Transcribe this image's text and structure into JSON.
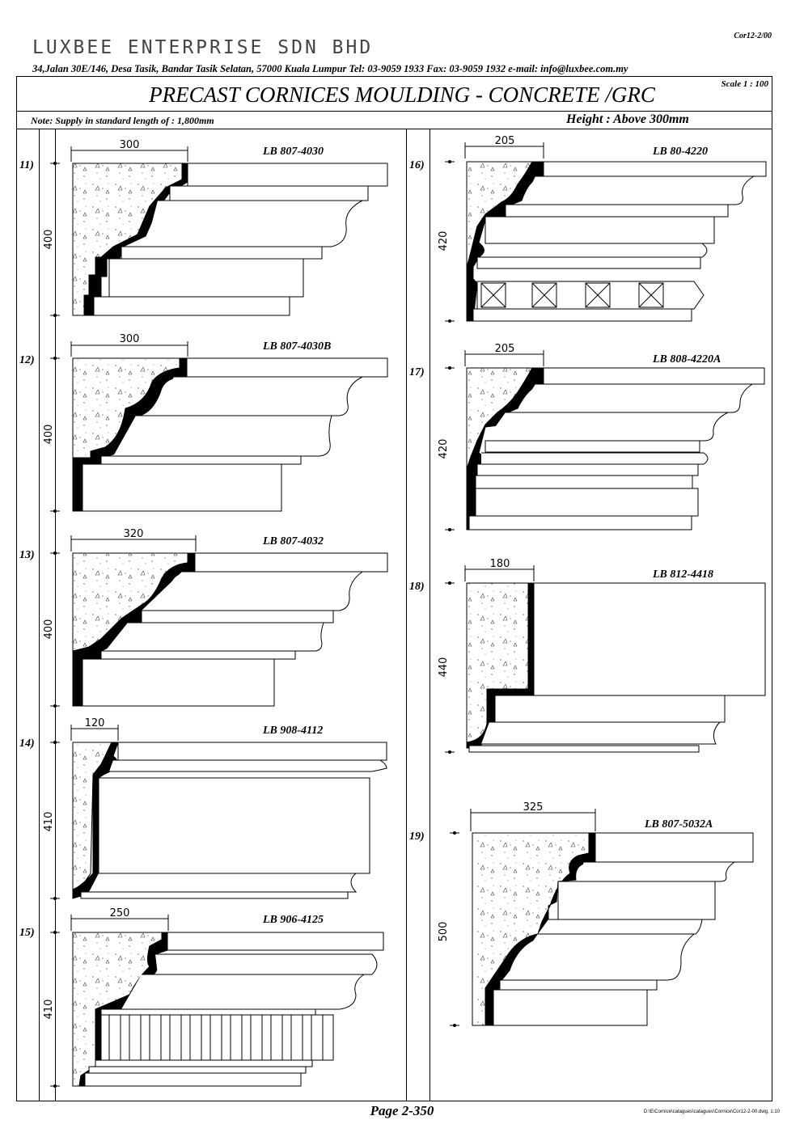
{
  "header": {
    "company": "LUXBEE  ENTERPRISE  SDN  BHD",
    "doc_ref": "Cor12-2/00",
    "address": "34,Jalan 30E/146, Desa Tasik, Bandar Tasik Selatan, 57000 Kuala Lumpur   Tel: 03-9059 1933   Fax: 03-9059 1932   e-mail: info@luxbee.com.my",
    "title": "PRECAST CORNICES MOULDING - CONCRETE /GRC",
    "scale": "Scale 1 : 100",
    "note": "Note: Supply in standard length of : 1,800mm",
    "height": "Height : Above 300mm"
  },
  "items": [
    {
      "num": "11)",
      "code": "LB 807-4030",
      "width": "300",
      "height": "400"
    },
    {
      "num": "12)",
      "code": "LB 807-4030B",
      "width": "300",
      "height": "400"
    },
    {
      "num": "13)",
      "code": "LB 807-4032",
      "width": "320",
      "height": "400"
    },
    {
      "num": "14)",
      "code": "LB 908-4112",
      "width": "120",
      "height": "410"
    },
    {
      "num": "15)",
      "code": "LB 906-4125",
      "width": "250",
      "height": "410"
    },
    {
      "num": "16)",
      "code": "LB 80-4220",
      "width": "205",
      "height": "420"
    },
    {
      "num": "17)",
      "code": "LB 808-4220A",
      "width": "205",
      "height": "420"
    },
    {
      "num": "18)",
      "code": "LB 812-4418",
      "width": "180",
      "height": "440"
    },
    {
      "num": "19)",
      "code": "LB 807-5032A",
      "width": "325",
      "height": "500"
    }
  ],
  "footer": {
    "page": "Page 2-350",
    "path": "D:\\E\\Cornice\\catagues\\catagues\\Cornice\\Cor12-2-00.dwg, 1:10"
  }
}
